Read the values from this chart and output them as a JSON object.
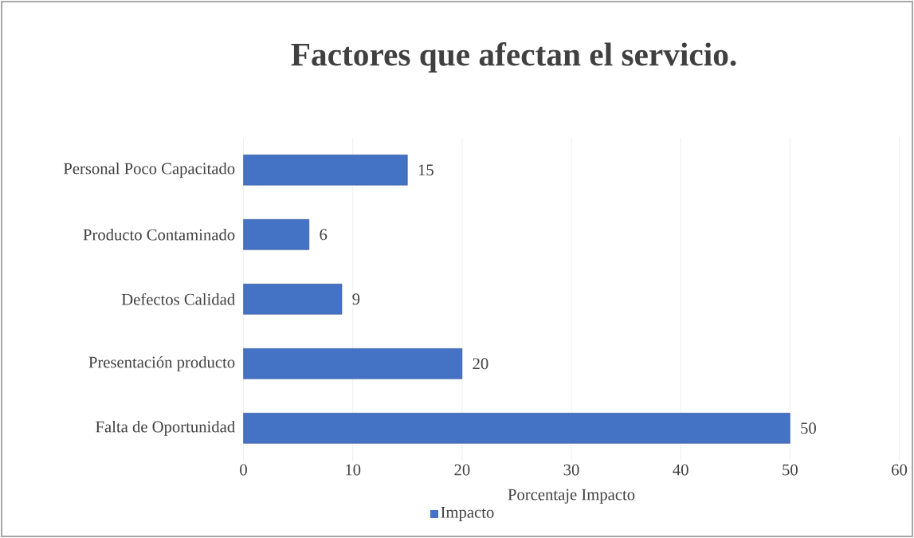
{
  "chart_data": {
    "type": "bar",
    "orientation": "horizontal",
    "title": "Factores que afectan el servicio.",
    "xlabel": "Porcentaje Impacto",
    "categories": [
      "Personal Poco Capacitado",
      "Producto Contaminado",
      "Defectos Calidad",
      "Presentación producto",
      "Falta de Oportunidad"
    ],
    "series": [
      {
        "name": "Impacto",
        "color": "#4472c4",
        "values": [
          15,
          6,
          9,
          20,
          50
        ]
      }
    ],
    "xlim": [
      0,
      60
    ],
    "xticks": [
      0,
      10,
      20,
      30,
      40,
      50,
      60
    ],
    "grid": "x",
    "legend": "bottom",
    "data_labels": true
  }
}
